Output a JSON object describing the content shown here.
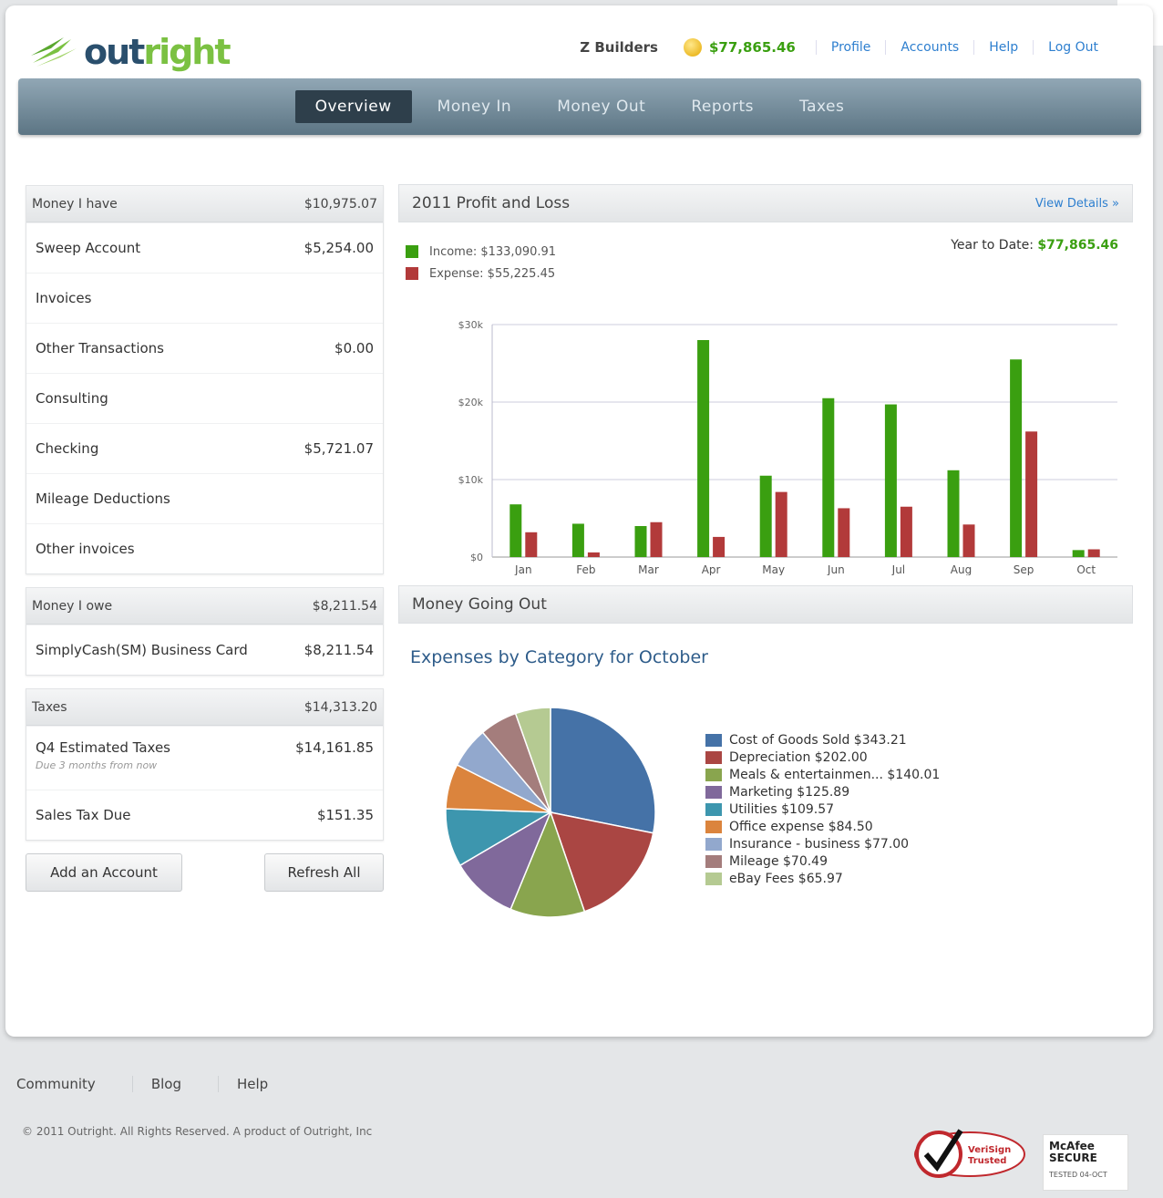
{
  "brand": {
    "logo_part1": "out",
    "logo_part2": "right"
  },
  "header": {
    "company": "Z Builders",
    "balance": "$77,865.46",
    "links": [
      "Profile",
      "Accounts",
      "Help",
      "Log Out"
    ]
  },
  "nav": {
    "tabs": [
      "Overview",
      "Money In",
      "Money Out",
      "Reports",
      "Taxes"
    ],
    "active": "Overview"
  },
  "money_have": {
    "title": "Money I have",
    "total": "$10,975.07",
    "rows": [
      {
        "label": "Sweep Account",
        "value": "$5,254.00"
      },
      {
        "label": "Invoices",
        "value": ""
      },
      {
        "label": "Other Transactions",
        "value": "$0.00"
      },
      {
        "label": "Consulting",
        "value": ""
      },
      {
        "label": "Checking",
        "value": "$5,721.07"
      },
      {
        "label": "Mileage Deductions",
        "value": ""
      },
      {
        "label": "Other invoices",
        "value": ""
      }
    ]
  },
  "money_owe": {
    "title": "Money I owe",
    "total": "$8,211.54",
    "rows": [
      {
        "label": "SimplyCash(SM) Business Card",
        "value": "$8,211.54"
      }
    ]
  },
  "taxes": {
    "title": "Taxes",
    "total": "$14,313.20",
    "rows": [
      {
        "label": "Q4 Estimated Taxes",
        "sub": "Due 3 months from now",
        "value": "$14,161.85"
      },
      {
        "label": "Sales Tax Due",
        "value": "$151.35"
      }
    ]
  },
  "buttons": {
    "add_account": "Add an Account",
    "refresh_all": "Refresh All"
  },
  "profit_loss": {
    "title": "2011 Profit and Loss",
    "view_details": "View Details »",
    "income_label": "Income: $133,090.91",
    "expense_label": "Expense: $55,225.45",
    "ytd_label": "Year to Date:",
    "ytd_value": "$77,865.46"
  },
  "money_going_out": {
    "title": "Money Going Out",
    "subtitle": "Expenses by Category for October"
  },
  "colors": {
    "income": "#3a9f10",
    "expense": "#b23a3a",
    "accent": "#2e7fcf"
  },
  "chart_data": [
    {
      "type": "bar",
      "categories": [
        "Jan",
        "Feb",
        "Mar",
        "Apr",
        "May",
        "Jun",
        "Jul",
        "Aug",
        "Sep",
        "Oct"
      ],
      "series": [
        {
          "name": "Income",
          "values": [
            6800,
            4300,
            4000,
            28000,
            10500,
            20500,
            19700,
            11200,
            25500,
            900
          ]
        },
        {
          "name": "Expense",
          "values": [
            3200,
            600,
            4500,
            2600,
            8400,
            6300,
            6500,
            4200,
            16200,
            1000
          ]
        }
      ],
      "yticks": [
        "$0",
        "$10k",
        "$20k",
        "$30k"
      ],
      "ylim": [
        0,
        30000
      ],
      "grid": true
    },
    {
      "type": "pie",
      "categories": [
        "Cost of Goods Sold",
        "Depreciation",
        "Meals & entertainmen...",
        "Marketing",
        "Utilities",
        "Office expense",
        "Insurance - business",
        "Mileage",
        "eBay Fees"
      ],
      "values": [
        343.21,
        202.0,
        140.01,
        125.89,
        109.57,
        84.5,
        77.0,
        70.49,
        65.97
      ],
      "labels": [
        "Cost of Goods Sold $343.21",
        "Depreciation $202.00",
        "Meals & entertainmen... $140.01",
        "Marketing $125.89",
        "Utilities $109.57",
        "Office expense $84.50",
        "Insurance - business $77.00",
        "Mileage $70.49",
        "eBay Fees $65.97"
      ],
      "colors": [
        "#4572a7",
        "#aa4643",
        "#89a54e",
        "#80699b",
        "#3d96ae",
        "#db843d",
        "#92a8cd",
        "#a47d7c",
        "#b5ca92"
      ]
    }
  ],
  "footer": {
    "links": [
      "Community",
      "Blog",
      "Help"
    ],
    "copyright": "© 2011 Outright. All Rights Reserved. A product of Outright, Inc",
    "verisign": [
      "VeriSign",
      "Trusted"
    ],
    "mcafee": [
      "McAfee",
      "SECURE",
      "TESTED 04-OCT"
    ]
  }
}
